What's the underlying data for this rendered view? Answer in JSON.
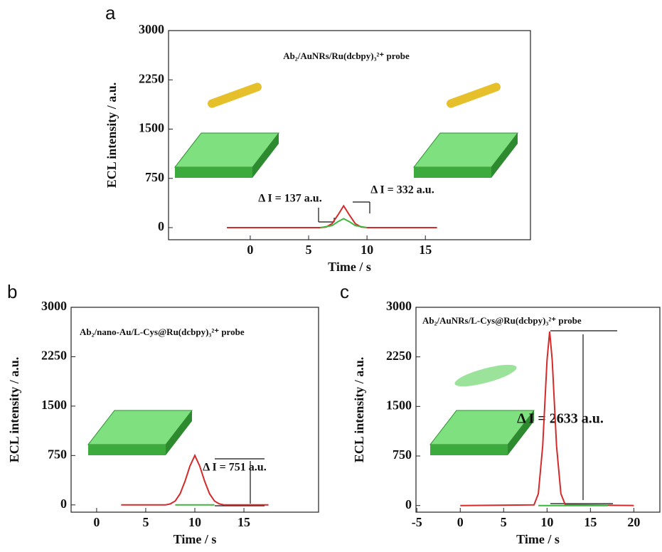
{
  "chart_data": [
    {
      "type": "line",
      "panel_label": "a",
      "title": "Ab₂/AuNRs/Ru(dcbpy)₃²⁺ probe",
      "x_label": "Time / s",
      "y_label": "ECL intensity / a.u.",
      "annotations": [
        "Δ I = 137 a.u.",
        "Δ I = 332 a.u."
      ],
      "xlim": [
        -7,
        24
      ],
      "ylim": [
        -184,
        3000
      ],
      "xticks": [
        0,
        5,
        10,
        15
      ],
      "yticks": [
        0,
        750,
        1500,
        2250,
        3000
      ],
      "series": [
        {
          "color": "#d42a2a",
          "x": [
            -2,
            6,
            6.5,
            7,
            7.5,
            8,
            8.5,
            9,
            9.5,
            10,
            16
          ],
          "values": [
            0,
            0,
            10,
            60,
            190,
            332,
            190,
            60,
            10,
            0,
            0
          ]
        },
        {
          "color": "#3cb83c",
          "x": [
            6,
            7,
            7.5,
            8,
            8.5,
            9,
            10
          ],
          "values": [
            0,
            30,
            90,
            137,
            90,
            30,
            0
          ]
        }
      ]
    },
    {
      "type": "line",
      "panel_label": "b",
      "title": "Ab₂/nano-Au/L-Cys@Ru(dcbpy)₃²⁺ probe",
      "x_label": "Time / s",
      "y_label": "ECL intensity / a.u.",
      "annotations": [
        "Δ I = 751 a.u."
      ],
      "xlim": [
        -2.6,
        22.6
      ],
      "ylim": [
        -110,
        3000
      ],
      "xticks": [
        0,
        5,
        10,
        15
      ],
      "yticks": [
        0,
        750,
        1500,
        2250,
        3000
      ],
      "series": [
        {
          "color": "#d42a2a",
          "x": [
            2.5,
            7,
            7.5,
            8,
            8.5,
            9,
            9.5,
            10,
            10.5,
            11,
            11.5,
            12,
            12.5,
            13,
            17.5
          ],
          "values": [
            0,
            0,
            15,
            60,
            170,
            360,
            590,
            751,
            590,
            360,
            170,
            60,
            15,
            0,
            0
          ]
        },
        {
          "color": "#3cb83c",
          "x": [
            8,
            12
          ],
          "values": [
            0,
            0
          ]
        }
      ]
    },
    {
      "type": "line",
      "panel_label": "c",
      "title": "Ab₂/AuNRs/L-Cys@Ru(dcbpy)₃²⁺ probe",
      "x_label": "Time / s",
      "y_label": "ECL intensity / a.u.",
      "annotations": [
        "Δ I = 2633 a.u."
      ],
      "xlim": [
        -5.1,
        23
      ],
      "ylim": [
        -100,
        3000
      ],
      "xticks": [
        -5,
        0,
        5,
        10,
        15,
        20
      ],
      "yticks": [
        0,
        750,
        1500,
        2250,
        3000
      ],
      "series": [
        {
          "color": "#d42a2a",
          "x": [
            0,
            8.5,
            9,
            9.5,
            10,
            10.3,
            10.6,
            11.1,
            11.6,
            12.1,
            20
          ],
          "values": [
            0,
            10,
            180,
            900,
            2200,
            2633,
            2200,
            900,
            180,
            10,
            0
          ]
        },
        {
          "color": "#3cb83c",
          "x": [
            9,
            17
          ],
          "values": [
            0,
            0
          ]
        }
      ]
    }
  ]
}
